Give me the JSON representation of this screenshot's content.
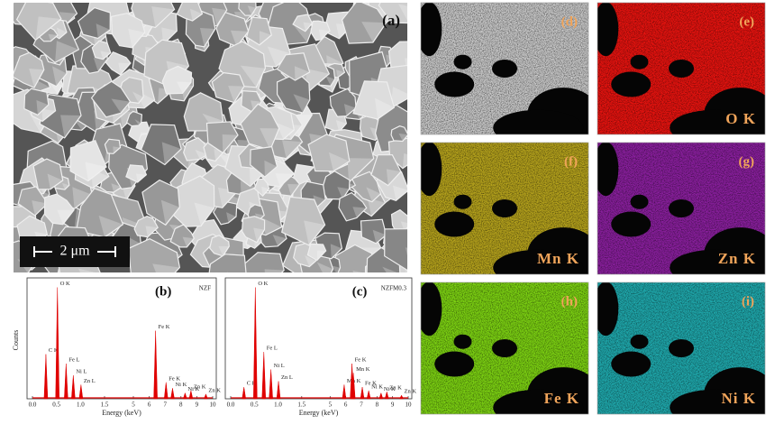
{
  "panels": {
    "sem": {
      "label": "(a)",
      "scale_bar": "2 μm"
    },
    "maps": [
      {
        "label": "(d)",
        "color": "#c8c8c8"
      },
      {
        "label": "(e)",
        "element": "O K",
        "color": "#e8130f"
      },
      {
        "label": "(f)",
        "element": "Mn K",
        "color": "#b5a21c"
      },
      {
        "label": "(g)",
        "element": "Zn K",
        "color": "#8a1f9e"
      },
      {
        "label": "(h)",
        "element": "Fe K",
        "color": "#7dd312"
      },
      {
        "label": "(i)",
        "element": "Ni K",
        "color": "#1fa9ad"
      }
    ]
  },
  "chart_data": [
    {
      "type": "stem",
      "panel_label": "(b)",
      "sample": "NZF",
      "y_label": "Counts",
      "x_label": "Energy (keV)",
      "xlim": [
        0,
        10
      ],
      "ylim": [
        0,
        100
      ],
      "xticks": [
        {
          "value": 0,
          "label": "0.0"
        },
        0.5,
        {
          "value": 1,
          "label": "1.0"
        },
        1.5,
        5,
        6,
        7,
        8,
        9,
        10
      ],
      "series": [
        {
          "color": "#e00000",
          "x": [
            0.28,
            0.52,
            0.7,
            0.85,
            1.01,
            6.4,
            7.06,
            7.47,
            8.26,
            8.63,
            9.57
          ],
          "values": [
            38,
            95,
            30,
            20,
            12,
            58,
            14,
            9,
            5,
            7,
            4
          ],
          "labels": [
            "C K",
            "O K",
            "Fe L",
            "Ni L",
            "Zn L",
            "Fe K",
            "Fe K",
            "Ni K",
            "Ni K",
            "Zn K",
            "Zn K"
          ]
        }
      ]
    },
    {
      "type": "stem",
      "panel_label": "(c)",
      "sample": "NZFM0.3",
      "y_label": "Counts",
      "x_label": "Energy (keV)",
      "xlim": [
        0,
        10
      ],
      "ylim": [
        0,
        100
      ],
      "xticks": [
        {
          "value": 0,
          "label": "0.0"
        },
        0.5,
        {
          "value": 1,
          "label": "1.0"
        },
        1.5,
        5,
        6,
        7,
        8,
        9,
        10
      ],
      "series": [
        {
          "color": "#e00000",
          "x": [
            0.28,
            0.52,
            0.7,
            0.85,
            1.01,
            5.9,
            6.4,
            6.49,
            7.06,
            7.47,
            8.26,
            8.63,
            9.57
          ],
          "values": [
            10,
            95,
            40,
            25,
            15,
            12,
            30,
            22,
            10,
            7,
            5,
            6,
            3
          ],
          "labels": [
            "C K",
            "O K",
            "Fe L",
            "Ni L",
            "Zn L",
            "Mn K",
            "Fe K",
            "Mn K",
            "Fe K",
            "Ni K",
            "Ni K",
            "Zn K",
            "Zn K"
          ]
        }
      ]
    }
  ]
}
